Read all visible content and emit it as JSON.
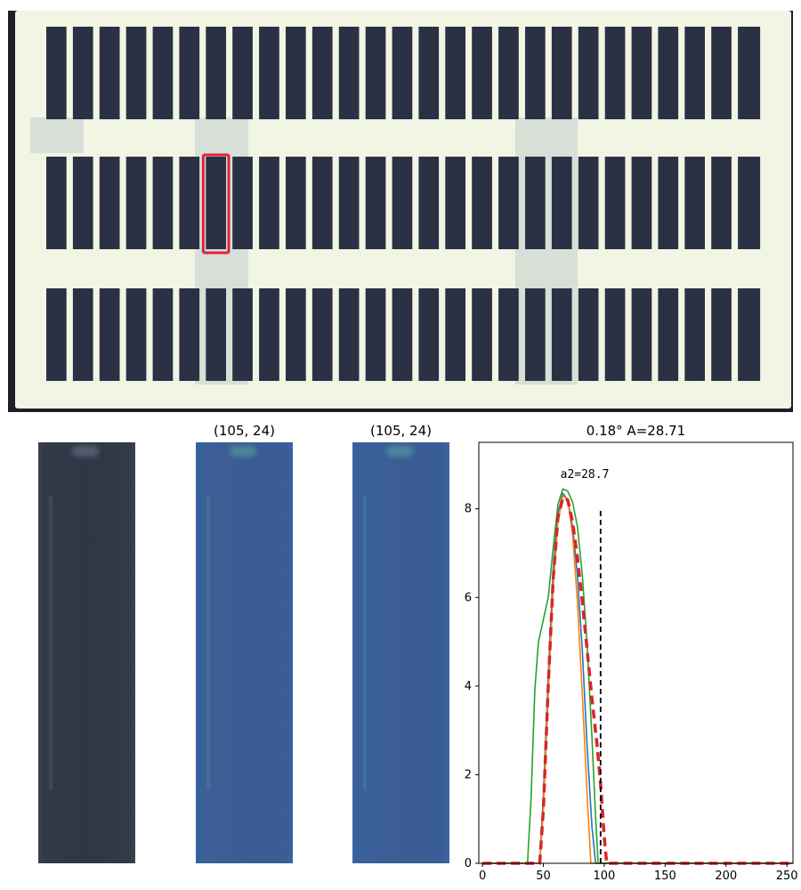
{
  "figure": {
    "crop_titles": [
      "(105, 24)",
      "(105, 24)"
    ]
  },
  "plate": {
    "rows": 3,
    "columns": 27,
    "highlight": {
      "row": 2,
      "column": 7,
      "color": "#e0203c"
    },
    "slot_color": "#2a3145",
    "gel_color": "#f2f4e4"
  },
  "crops": {
    "rgb": {
      "tint": "#323a4a"
    },
    "channel_1": {
      "tint": "#3b5c93"
    },
    "channel_2": {
      "tint": "#3c5d94"
    }
  },
  "chart_data": {
    "type": "line",
    "title": "0.18° A=28.71",
    "xlabel": "",
    "ylabel": "",
    "xlim": [
      -3,
      255
    ],
    "ylim": [
      0,
      9.5
    ],
    "xticks": [
      0,
      50,
      100,
      150,
      200,
      250
    ],
    "yticks": [
      0,
      2,
      4,
      6,
      8
    ],
    "annotation": {
      "text": "a2=28.7",
      "x": 84,
      "y": 8.7
    },
    "vline": {
      "x": 97,
      "y0": 0,
      "y1": 8,
      "style": "dashed",
      "color": "#000000"
    },
    "series": [
      {
        "color": "#1f77b4",
        "style": "solid",
        "points": [
          [
            0,
            0
          ],
          [
            47,
            0
          ],
          [
            50,
            1.5
          ],
          [
            54,
            4.2
          ],
          [
            58,
            6.6
          ],
          [
            62,
            7.9
          ],
          [
            66,
            8.35
          ],
          [
            70,
            8.2
          ],
          [
            74,
            7.6
          ],
          [
            78,
            6.5
          ],
          [
            82,
            4.8
          ],
          [
            86,
            2.6
          ],
          [
            90,
            0.8
          ],
          [
            93,
            0
          ],
          [
            255,
            0
          ]
        ]
      },
      {
        "color": "#ff7f0e",
        "style": "solid",
        "points": [
          [
            0,
            0
          ],
          [
            47,
            0
          ],
          [
            50,
            1.2
          ],
          [
            54,
            3.8
          ],
          [
            58,
            6.2
          ],
          [
            62,
            7.7
          ],
          [
            66,
            8.3
          ],
          [
            70,
            8.2
          ],
          [
            74,
            7.4
          ],
          [
            78,
            5.9
          ],
          [
            82,
            3.8
          ],
          [
            86,
            1.5
          ],
          [
            89,
            0
          ],
          [
            255,
            0
          ]
        ]
      },
      {
        "color": "#2ca02c",
        "style": "solid",
        "points": [
          [
            0,
            0
          ],
          [
            37,
            0
          ],
          [
            40,
            1.5
          ],
          [
            43,
            3.9
          ],
          [
            46,
            5.0
          ],
          [
            50,
            5.5
          ],
          [
            54,
            6.0
          ],
          [
            58,
            7.1
          ],
          [
            62,
            8.1
          ],
          [
            66,
            8.45
          ],
          [
            70,
            8.4
          ],
          [
            74,
            8.15
          ],
          [
            78,
            7.6
          ],
          [
            82,
            6.5
          ],
          [
            86,
            4.9
          ],
          [
            90,
            2.8
          ],
          [
            93,
            1.0
          ],
          [
            95,
            0
          ],
          [
            255,
            0
          ]
        ]
      },
      {
        "color": "#d62728",
        "style": "dashed",
        "points": [
          [
            0,
            0
          ],
          [
            47,
            0
          ],
          [
            50,
            1.2
          ],
          [
            54,
            4.0
          ],
          [
            58,
            6.4
          ],
          [
            62,
            7.8
          ],
          [
            66,
            8.25
          ],
          [
            70,
            8.2
          ],
          [
            74,
            7.7
          ],
          [
            78,
            6.9
          ],
          [
            82,
            5.9
          ],
          [
            86,
            4.8
          ],
          [
            90,
            3.7
          ],
          [
            94,
            2.7
          ],
          [
            97,
            1.8
          ],
          [
            100,
            0.6
          ],
          [
            102,
            0
          ],
          [
            255,
            0
          ]
        ]
      }
    ]
  }
}
